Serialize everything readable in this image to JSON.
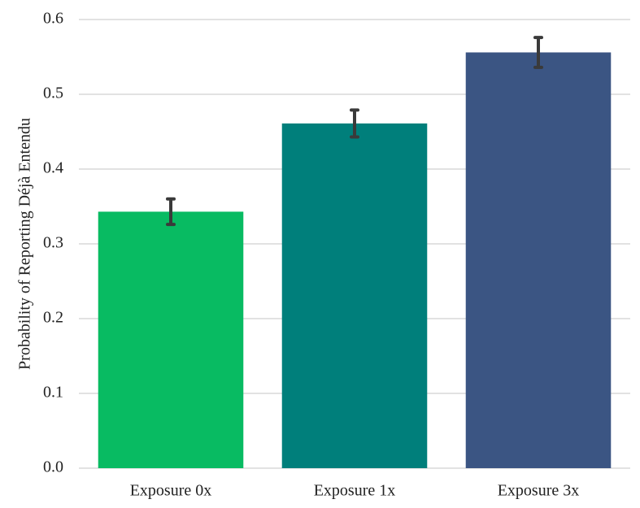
{
  "chart_data": {
    "type": "bar",
    "ylabel": "Probability of Reporting Déjà Entendu",
    "categories": [
      "Exposure 0x",
      "Exposure 1x",
      "Exposure 3x"
    ],
    "values": [
      0.343,
      0.461,
      0.556
    ],
    "errors": [
      0.017,
      0.018,
      0.02
    ],
    "colors": [
      "#08bb62",
      "#007f7b",
      "#3b5583"
    ],
    "ylim": [
      0,
      0.6
    ],
    "yticks": [
      {
        "value": 0,
        "label": "0.0"
      },
      0.1,
      0.2,
      0.3,
      0.4,
      0.5,
      0.6
    ],
    "grid": true
  }
}
